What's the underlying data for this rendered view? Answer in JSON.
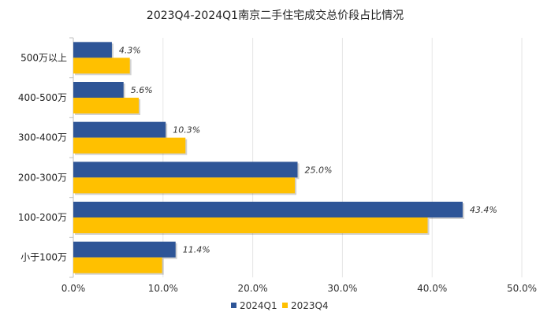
{
  "chart_data": {
    "type": "bar",
    "orientation": "horizontal",
    "title": "2023Q4-2024Q1南京二手住宅成交总价段占比情况",
    "categories": [
      "500万以上",
      "400-500万",
      "300-400万",
      "200-300万",
      "100-200万",
      "小于100万"
    ],
    "series": [
      {
        "name": "2024Q1",
        "color": "#2E5597",
        "values": [
          4.3,
          5.6,
          10.3,
          25.0,
          43.4,
          11.4
        ],
        "labels": [
          "4.3%",
          "5.6%",
          "10.3%",
          "25.0%",
          "43.4%",
          "11.4%"
        ]
      },
      {
        "name": "2023Q4",
        "color": "#FFC000",
        "values": [
          6.3,
          7.3,
          12.5,
          24.7,
          39.5,
          9.9
        ]
      }
    ],
    "xlim": [
      0,
      50
    ],
    "xticks": [
      "0.0%",
      "10.0%",
      "20.0%",
      "30.0%",
      "40.0%",
      "50.0%"
    ],
    "grid": true,
    "legend": "bottom"
  }
}
